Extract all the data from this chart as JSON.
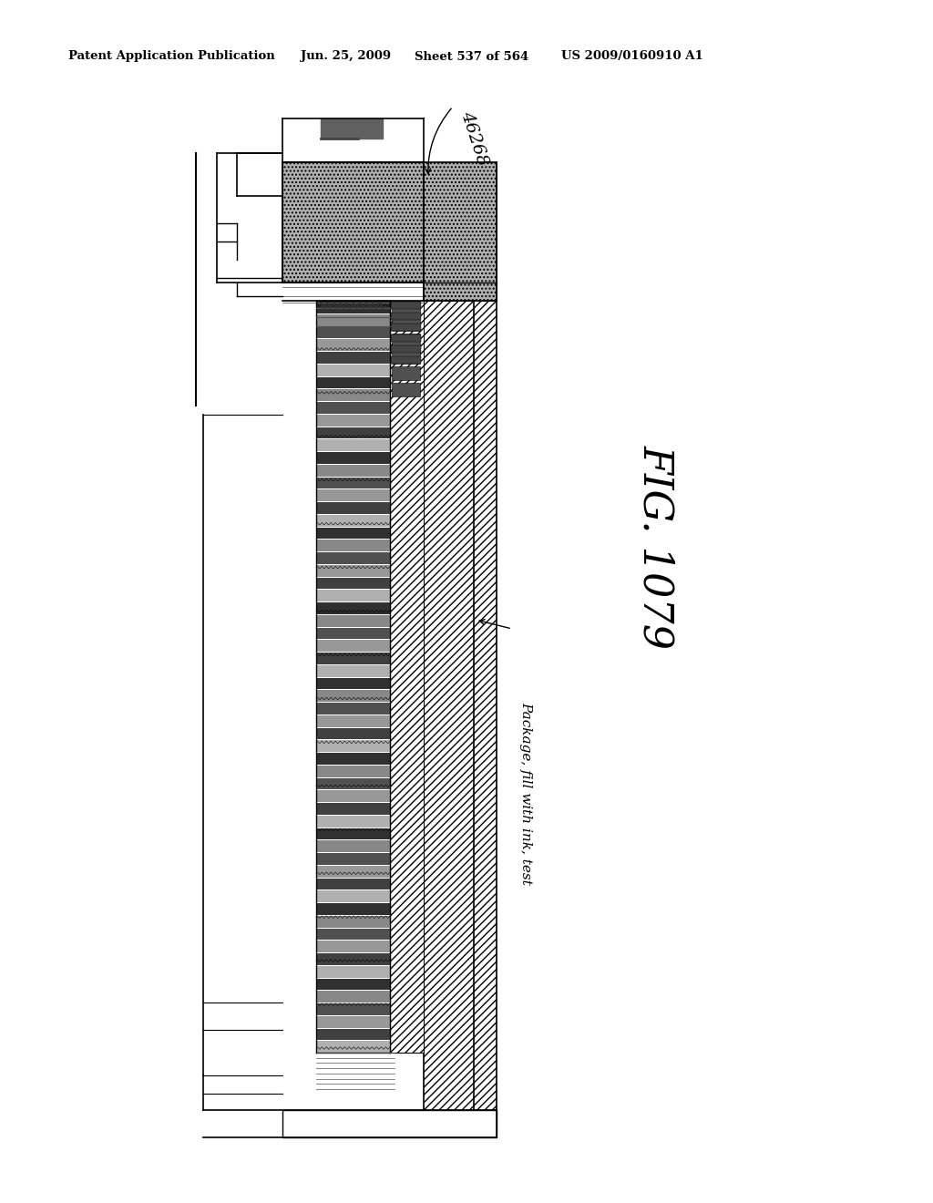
{
  "header_left": "Patent Application Publication",
  "header_mid": "Jun. 25, 2009  Sheet 537 of 564   US 2009/0160910 A1",
  "fig_label": "FIG. 1079",
  "label_46268": "46268",
  "label_package": "Package, fill with ink, test",
  "bg_color": "#ffffff",
  "lc": "#000000",
  "stipple_color": "#b0b0b0",
  "hatch_diag_color": "#c0c0c0",
  "chip_layer_color": "#808080",
  "wavy_color": "#404040"
}
